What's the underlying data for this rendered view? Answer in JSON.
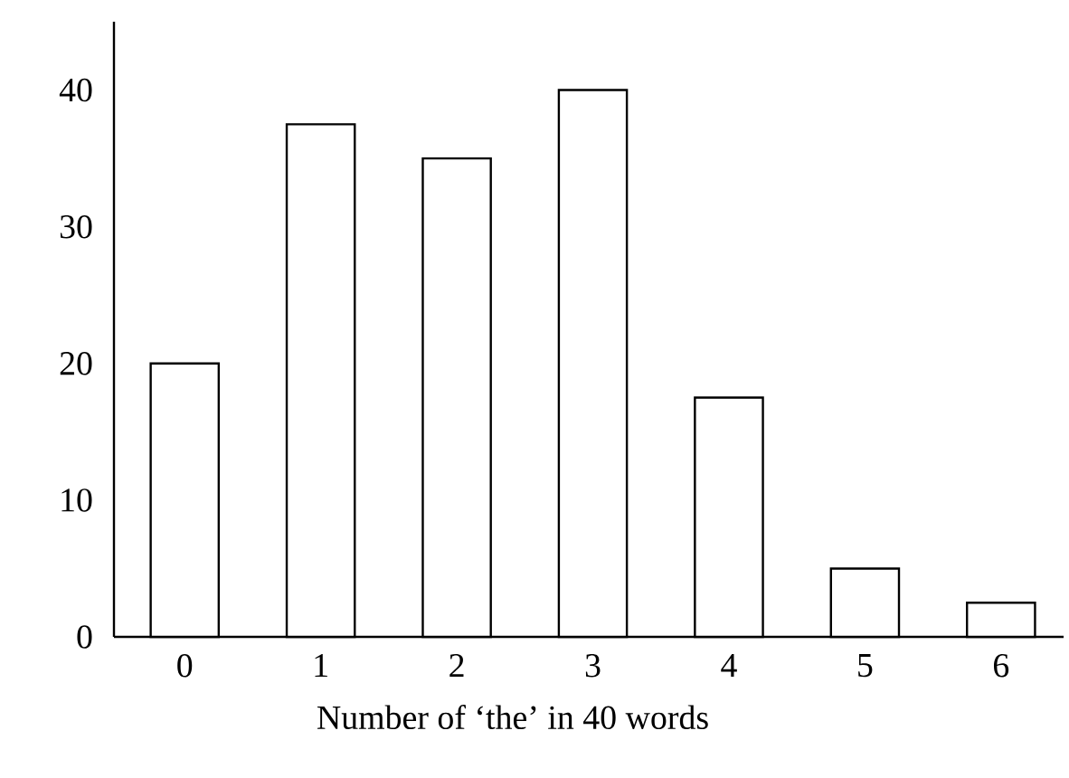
{
  "chart_data": {
    "type": "bar",
    "xlabel": "Number of ‘the’ in 40 words",
    "categories": [
      "0",
      "1",
      "2",
      "3",
      "4",
      "5",
      "6"
    ],
    "values": [
      20,
      37.5,
      35,
      40,
      17.5,
      5,
      2.5
    ],
    "color": "#ffffff",
    "ylim": [
      0,
      45
    ],
    "yticks": [
      0,
      10,
      20,
      30,
      40
    ],
    "grid": false
  }
}
